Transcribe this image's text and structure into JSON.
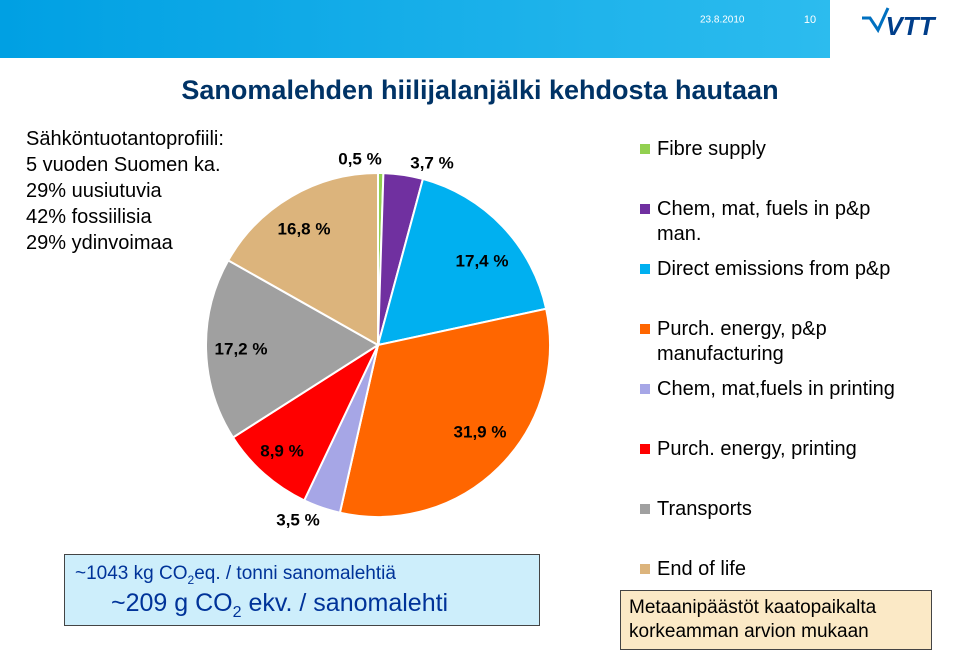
{
  "header": {
    "date": "23.8.2010",
    "page": "10",
    "logo": "VTT"
  },
  "title": "Sanomalehden hiilijalanjälki kehdosta hautaan",
  "left_text": [
    "Sähköntuotantoprofiili:",
    "5 vuoden Suomen ka.",
    "29% uusiutuvia",
    "42% fossiilisia",
    "29% ydinvoimaa"
  ],
  "note": {
    "line1": [
      "~1043 kg CO",
      "2",
      "eq. / tonni sanomalehtiä"
    ],
    "line2": [
      "~209 g CO",
      "2",
      " ekv. / sanomalehti"
    ]
  },
  "remark": [
    "Metaanipäästöt kaatopaikalta",
    "korkeamman arvion mukaan"
  ],
  "chart_data": {
    "type": "pie",
    "categories": [
      "Fibre supply",
      "Chem, mat, fuels in p&p man.",
      "Direct emissions from p&p",
      "Purch. energy, p&p manufacturing",
      "Chem, mat,fuels in printing",
      "Purch. energy, printing",
      "Transports",
      "End of life"
    ],
    "values": [
      0.5,
      3.7,
      17.4,
      31.9,
      3.5,
      8.9,
      17.2,
      16.8
    ],
    "value_labels": [
      "0,5 %",
      "3,7 %",
      "17,4 %",
      "31,9 %",
      "3,5 %",
      "8,9 %",
      "17,2 %",
      "16,8 %"
    ],
    "colors": [
      "#92d050",
      "#7030a0",
      "#00b0f0",
      "#ff6600",
      "#a6a6e6",
      "#ff0000",
      "#a0a0a0",
      "#dcb47c"
    ]
  }
}
